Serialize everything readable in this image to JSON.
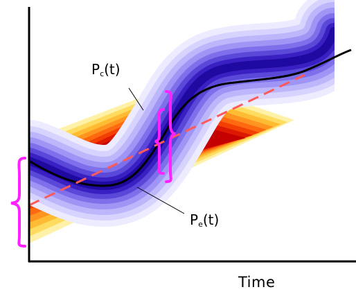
{
  "x_axis_label": "Time",
  "pc_label": {
    "main": "P",
    "subscript": "c",
    "suffix": "(t)"
  },
  "pe_label": {
    "main": "P",
    "subscript": "e",
    "suffix": "(t)"
  },
  "colors": {
    "axis": "#000000",
    "dashed_line": "#ff5555",
    "mean_curve": "#000000",
    "brace": "#ff22ff",
    "warm_band_center": "#cc0000",
    "warm_band_edge": "#fff0a0",
    "cool_band_center": "#1a0099",
    "cool_band_edge": "#e8e6ff"
  }
}
